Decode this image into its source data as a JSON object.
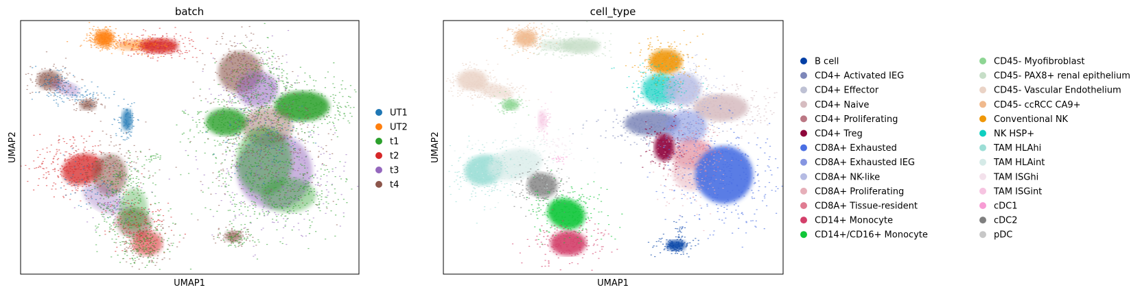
{
  "chart_data": [
    {
      "type": "scatter",
      "title": "batch",
      "xlabel": "UMAP1",
      "ylabel": "UMAP2",
      "grid": false,
      "ticks": false,
      "legend_placement": "right",
      "legend_columns": 1,
      "series": [
        {
          "name": "UT1",
          "color": "#1f77b4"
        },
        {
          "name": "UT2",
          "color": "#ff7f0e"
        },
        {
          "name": "t1",
          "color": "#2ca02c"
        },
        {
          "name": "t2",
          "color": "#d62728"
        },
        {
          "name": "t3",
          "color": "#9467bd"
        },
        {
          "name": "t4",
          "color": "#8c564b"
        }
      ]
    },
    {
      "type": "scatter",
      "title": "cell_type",
      "xlabel": "UMAP1",
      "ylabel": "UMAP2",
      "grid": false,
      "ticks": false,
      "legend_placement": "right",
      "legend_columns": 2,
      "series": [
        {
          "name": "B cell",
          "color": "#023fa5"
        },
        {
          "name": "CD4+ Activated IEG",
          "color": "#7d87b9"
        },
        {
          "name": "CD4+ Effector",
          "color": "#bec1d4"
        },
        {
          "name": "CD4+ Naive",
          "color": "#d6bcc0"
        },
        {
          "name": "CD4+ Proliferating",
          "color": "#bb7784"
        },
        {
          "name": "CD4+ Treg",
          "color": "#8e063b"
        },
        {
          "name": "CD8A+ Exhausted",
          "color": "#4a6fe3"
        },
        {
          "name": "CD8A+ Exhausted IEG",
          "color": "#8595e1"
        },
        {
          "name": "CD8A+ NK-like",
          "color": "#b5bbe3"
        },
        {
          "name": "CD8A+ Proliferating",
          "color": "#e6afb9"
        },
        {
          "name": "CD8A+ Tissue-resident",
          "color": "#e07b91"
        },
        {
          "name": "CD14+ Monocyte",
          "color": "#d33f6a"
        },
        {
          "name": "CD14+/CD16+ Monocyte",
          "color": "#11c638"
        },
        {
          "name": "CD45- Myofibroblast",
          "color": "#8dd593"
        },
        {
          "name": "CD45- PAX8+ renal epithelium",
          "color": "#c6dec7"
        },
        {
          "name": "CD45- Vascular Endothelium",
          "color": "#ead3c6"
        },
        {
          "name": "CD45- ccRCC CA9+",
          "color": "#f0b98d"
        },
        {
          "name": "Conventional NK",
          "color": "#ef9708"
        },
        {
          "name": "NK HSP+",
          "color": "#0fcfc0"
        },
        {
          "name": "TAM HLAhi",
          "color": "#9cded6"
        },
        {
          "name": "TAM HLAint",
          "color": "#d5eae7"
        },
        {
          "name": "TAM ISGhi",
          "color": "#f3e1eb"
        },
        {
          "name": "TAM ISGint",
          "color": "#f6c4e1"
        },
        {
          "name": "cDC1",
          "color": "#f79cd4"
        },
        {
          "name": "cDC2",
          "color": "#7f7f7f"
        },
        {
          "name": "pDC",
          "color": "#c7c7c7"
        }
      ]
    }
  ]
}
